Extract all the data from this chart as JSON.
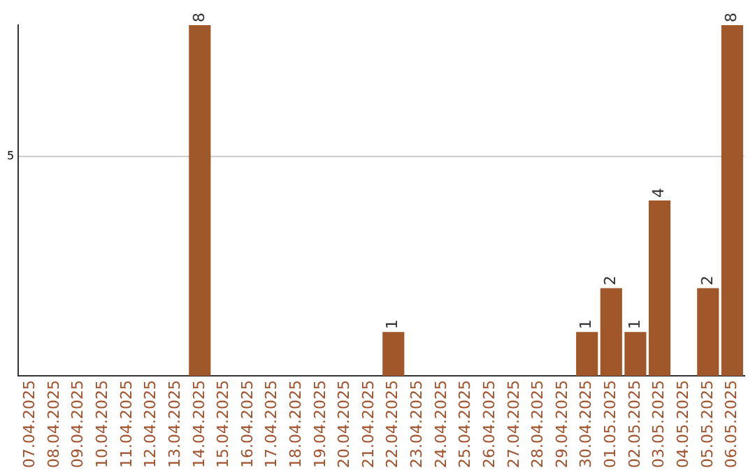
{
  "chart_data": {
    "type": "bar",
    "categories": [
      "07.04.2025",
      "08.04.2025",
      "09.04.2025",
      "10.04.2025",
      "11.04.2025",
      "12.04.2025",
      "13.04.2025",
      "14.04.2025",
      "15.04.2025",
      "16.04.2025",
      "17.04.2025",
      "18.04.2025",
      "19.04.2025",
      "20.04.2025",
      "21.04.2025",
      "22.04.2025",
      "23.04.2025",
      "24.04.2025",
      "25.04.2025",
      "26.04.2025",
      "27.04.2025",
      "28.04.2025",
      "29.04.2025",
      "30.04.2025",
      "01.05.2025",
      "02.05.2025",
      "03.05.2025",
      "04.05.2025",
      "05.05.2025",
      "06.05.2025"
    ],
    "values": [
      0,
      0,
      0,
      0,
      0,
      0,
      0,
      8,
      0,
      0,
      0,
      0,
      0,
      0,
      0,
      1,
      0,
      0,
      0,
      0,
      0,
      0,
      0,
      1,
      2,
      1,
      4,
      0,
      2,
      8
    ],
    "value_labels": [
      null,
      null,
      null,
      null,
      null,
      null,
      null,
      "8",
      null,
      null,
      null,
      null,
      null,
      null,
      null,
      "1",
      null,
      null,
      null,
      null,
      null,
      null,
      null,
      "1",
      "2",
      "1",
      "4",
      null,
      "2",
      "8"
    ],
    "color": "#a0582a",
    "ylim": [
      0,
      8
    ],
    "yticks": [
      5
    ],
    "grid": "y",
    "legend": false
  }
}
